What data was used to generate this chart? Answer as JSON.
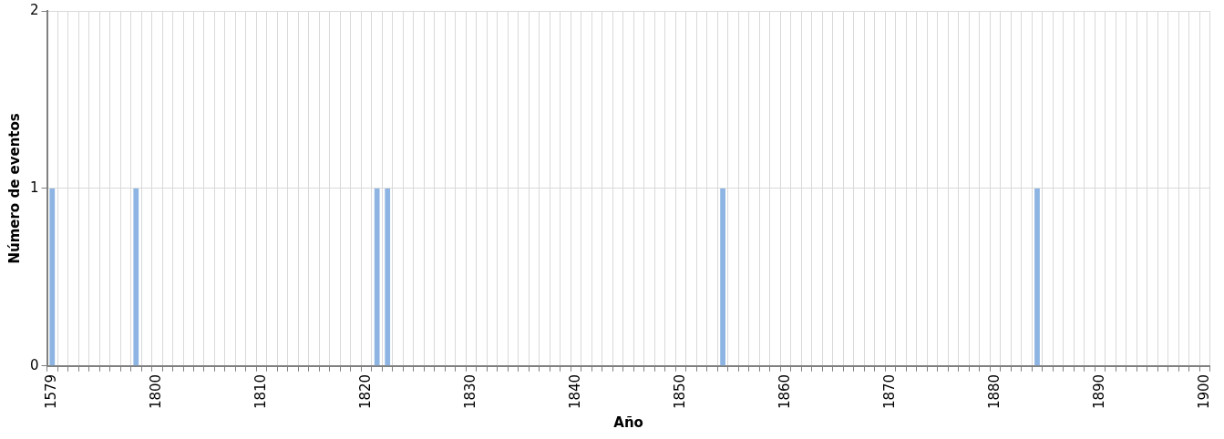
{
  "chart_data": {
    "type": "bar",
    "xlabel": "Año",
    "ylabel": "Número de eventos",
    "categories": [
      "1579",
      null,
      null,
      null,
      null,
      null,
      null,
      null,
      null,
      null,
      "1800",
      null,
      null,
      null,
      null,
      null,
      null,
      null,
      null,
      null,
      "1810",
      null,
      null,
      null,
      null,
      null,
      null,
      null,
      null,
      null,
      "1820",
      null,
      null,
      null,
      null,
      null,
      null,
      null,
      null,
      null,
      "1830",
      null,
      null,
      null,
      null,
      null,
      null,
      null,
      null,
      null,
      "1840",
      null,
      null,
      null,
      null,
      null,
      null,
      null,
      null,
      null,
      "1850",
      null,
      null,
      null,
      null,
      null,
      null,
      null,
      null,
      null,
      "1860",
      null,
      null,
      null,
      null,
      null,
      null,
      null,
      null,
      null,
      "1870",
      null,
      null,
      null,
      null,
      null,
      null,
      null,
      null,
      null,
      "1880",
      null,
      null,
      null,
      null,
      null,
      null,
      null,
      null,
      null,
      "1890",
      null,
      null,
      null,
      null,
      null,
      null,
      null,
      null,
      null,
      "1900"
    ],
    "values": [
      1,
      0,
      0,
      0,
      0,
      0,
      0,
      0,
      1,
      0,
      0,
      0,
      0,
      0,
      0,
      0,
      0,
      0,
      0,
      0,
      0,
      0,
      0,
      0,
      0,
      0,
      0,
      0,
      0,
      0,
      0,
      1,
      1,
      0,
      0,
      0,
      0,
      0,
      0,
      0,
      0,
      0,
      0,
      0,
      0,
      0,
      0,
      0,
      0,
      0,
      0,
      0,
      0,
      0,
      0,
      0,
      0,
      0,
      0,
      0,
      0,
      0,
      0,
      0,
      1,
      0,
      0,
      0,
      0,
      0,
      0,
      0,
      0,
      0,
      0,
      0,
      0,
      0,
      0,
      0,
      0,
      0,
      0,
      0,
      0,
      0,
      0,
      0,
      0,
      0,
      0,
      0,
      0,
      0,
      1,
      0,
      0,
      0,
      0,
      0,
      0,
      0,
      0,
      0,
      0,
      0,
      0,
      0,
      0,
      0,
      0
    ],
    "color": "#8db4e2",
    "ylim": [
      0,
      2
    ],
    "yticks": [
      0,
      1,
      2
    ],
    "grid": true
  }
}
